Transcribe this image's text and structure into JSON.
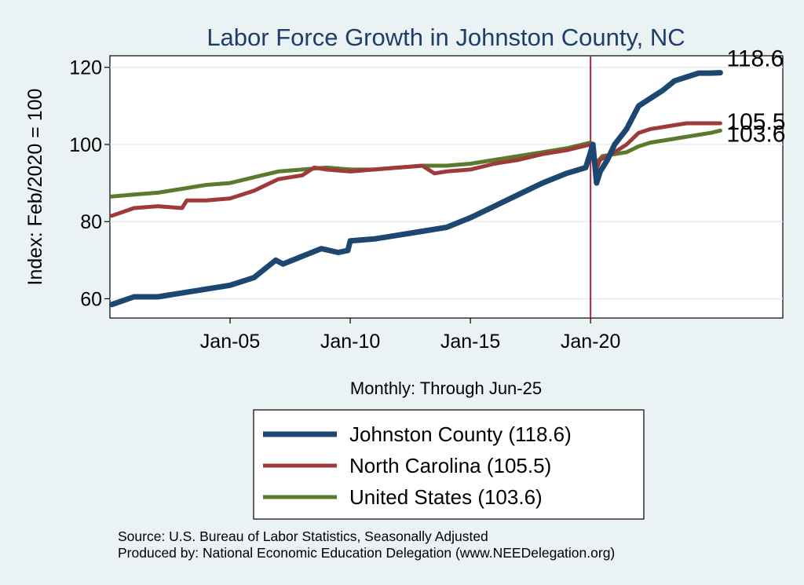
{
  "chart_data": {
    "type": "line",
    "title": "Labor Force Growth in Johnston  County, NC",
    "ylabel": "Index: Feb/2020 = 100",
    "xlabel": "Monthly: Through Jun-25",
    "ylim": [
      55,
      123
    ],
    "yticks": [
      60,
      80,
      100,
      120
    ],
    "xlim": [
      2000.0,
      2028.0
    ],
    "xticks": [
      {
        "value": 2005,
        "label": "Jan-05"
      },
      {
        "value": 2010,
        "label": "Jan-10"
      },
      {
        "value": 2015,
        "label": "Jan-15"
      },
      {
        "value": 2020,
        "label": "Jan-20"
      }
    ],
    "reference_line": {
      "x": 2020.0,
      "color": "#b0243b"
    },
    "grid": "horizontal",
    "series": [
      {
        "name": "Johnston  County (118.6)",
        "color": "#1b4770",
        "end_label": "118.6",
        "x": [
          2000.08,
          2001.0,
          2002.0,
          2003.0,
          2004.0,
          2005.0,
          2006.0,
          2006.9,
          2007.2,
          2008.0,
          2008.8,
          2009.5,
          2009.9,
          2010.0,
          2011.0,
          2012.0,
          2013.0,
          2014.0,
          2015.0,
          2016.0,
          2017.0,
          2018.0,
          2019.0,
          2019.8,
          2020.1,
          2020.25,
          2020.4,
          2020.7,
          2021.0,
          2021.5,
          2022.0,
          2022.5,
          2023.0,
          2023.5,
          2024.0,
          2024.5,
          2025.0,
          2025.4
        ],
        "values": [
          58.5,
          60.5,
          60.5,
          61.5,
          62.5,
          63.5,
          65.5,
          70.0,
          69.0,
          71.0,
          73.0,
          72.0,
          72.5,
          75.0,
          75.5,
          76.5,
          77.5,
          78.5,
          81.0,
          84.0,
          87.0,
          90.0,
          92.5,
          94.0,
          100.0,
          90.0,
          93.0,
          96.0,
          100.0,
          104.0,
          110.0,
          112.0,
          114.0,
          116.5,
          117.5,
          118.5,
          118.5,
          118.6
        ]
      },
      {
        "name": "North Carolina (105.5)",
        "color": "#9e3a3a",
        "end_label": "105.5",
        "x": [
          2000.08,
          2001.0,
          2002.0,
          2003.0,
          2003.2,
          2004.0,
          2005.0,
          2006.0,
          2007.0,
          2008.0,
          2008.5,
          2009.0,
          2010.0,
          2011.0,
          2012.0,
          2013.0,
          2013.5,
          2014.0,
          2015.0,
          2016.0,
          2017.0,
          2018.0,
          2019.0,
          2020.0,
          2020.2,
          2020.4,
          2020.7,
          2021.0,
          2021.5,
          2022.0,
          2022.5,
          2023.0,
          2023.5,
          2024.0,
          2025.0,
          2025.4
        ],
        "values": [
          81.5,
          83.5,
          84.0,
          83.5,
          85.5,
          85.5,
          86.0,
          88.0,
          91.0,
          92.0,
          94.0,
          93.5,
          93.0,
          93.5,
          94.0,
          94.5,
          92.5,
          93.0,
          93.5,
          95.0,
          96.0,
          97.5,
          98.5,
          100.0,
          93.0,
          96.0,
          97.0,
          98.0,
          100.0,
          103.0,
          104.0,
          104.5,
          105.0,
          105.5,
          105.5,
          105.5
        ]
      },
      {
        "name": "United States (103.6)",
        "color": "#5b7a2d",
        "end_label": "103.6",
        "x": [
          2000.08,
          2001.0,
          2002.0,
          2003.0,
          2004.0,
          2005.0,
          2006.0,
          2007.0,
          2008.0,
          2009.0,
          2010.0,
          2011.0,
          2012.0,
          2013.0,
          2014.0,
          2015.0,
          2016.0,
          2017.0,
          2018.0,
          2019.0,
          2020.0,
          2020.2,
          2020.5,
          2021.0,
          2021.5,
          2022.0,
          2022.5,
          2023.0,
          2023.5,
          2024.0,
          2025.0,
          2025.4
        ],
        "values": [
          86.5,
          87.0,
          87.5,
          88.5,
          89.5,
          90.0,
          91.5,
          93.0,
          93.5,
          94.0,
          93.5,
          93.5,
          94.0,
          94.5,
          94.5,
          95.0,
          96.0,
          97.0,
          98.0,
          99.0,
          100.5,
          95.0,
          97.0,
          97.5,
          98.0,
          99.5,
          100.5,
          101.0,
          101.5,
          102.0,
          103.0,
          103.6
        ]
      }
    ],
    "legend": {
      "placement": "bottom-center",
      "entries": [
        "Johnston  County (118.6)",
        "North Carolina (105.5)",
        "United States (103.6)"
      ]
    }
  },
  "footer": {
    "source": "Source: U.S. Bureau of Labor Statistics, Seasonally Adjusted",
    "produced": "Produced by: National Economic Education Delegation (www.NEEDelegation.org)"
  }
}
